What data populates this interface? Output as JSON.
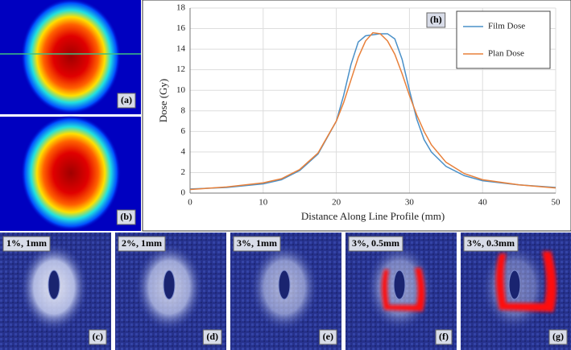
{
  "image_panels": [
    "(a)",
    "(b)"
  ],
  "gamma_panels": [
    {
      "label": "(c)",
      "criteria": "1%, 1mm"
    },
    {
      "label": "(d)",
      "criteria": "2%, 1mm"
    },
    {
      "label": "(e)",
      "criteria": "3%, 1mm"
    },
    {
      "label": "(f)",
      "criteria": "3%, 0.5mm"
    },
    {
      "label": "(g)",
      "criteria": "3%, 0.3mm"
    }
  ],
  "chart_data": {
    "type": "line",
    "panel_label": "(h)",
    "xlabel": "Distance Along Line Profile (mm)",
    "ylabel": "Dose (Gy)",
    "x": [
      0,
      5,
      10,
      12.5,
      15,
      17.5,
      20,
      21,
      22,
      23,
      24,
      25,
      26,
      27,
      28,
      29,
      30,
      31,
      32,
      33,
      35,
      37.5,
      40,
      45,
      50
    ],
    "series": [
      {
        "name": "Film Dose",
        "color": "#4a90c8",
        "values": [
          0.4,
          0.55,
          0.9,
          1.3,
          2.2,
          3.8,
          7.0,
          9.5,
          12.5,
          14.7,
          15.3,
          15.4,
          15.5,
          15.5,
          15.0,
          13.0,
          10.0,
          7.2,
          5.2,
          4.0,
          2.6,
          1.7,
          1.2,
          0.8,
          0.55
        ]
      },
      {
        "name": "Plan Dose",
        "color": "#e8803a",
        "values": [
          0.35,
          0.6,
          1.0,
          1.4,
          2.3,
          3.9,
          7.0,
          8.8,
          11.0,
          13.2,
          14.8,
          15.6,
          15.5,
          14.8,
          13.5,
          11.6,
          9.5,
          7.6,
          6.0,
          4.7,
          3.0,
          1.9,
          1.3,
          0.8,
          0.5
        ]
      }
    ],
    "xlim": [
      0,
      50
    ],
    "ylim": [
      0,
      18
    ],
    "xticks": [
      0,
      10,
      20,
      30,
      40,
      50
    ],
    "yticks": [
      0,
      2,
      4,
      6,
      8,
      10,
      12,
      14,
      16,
      18
    ],
    "grid": true,
    "legend": "upper right"
  }
}
